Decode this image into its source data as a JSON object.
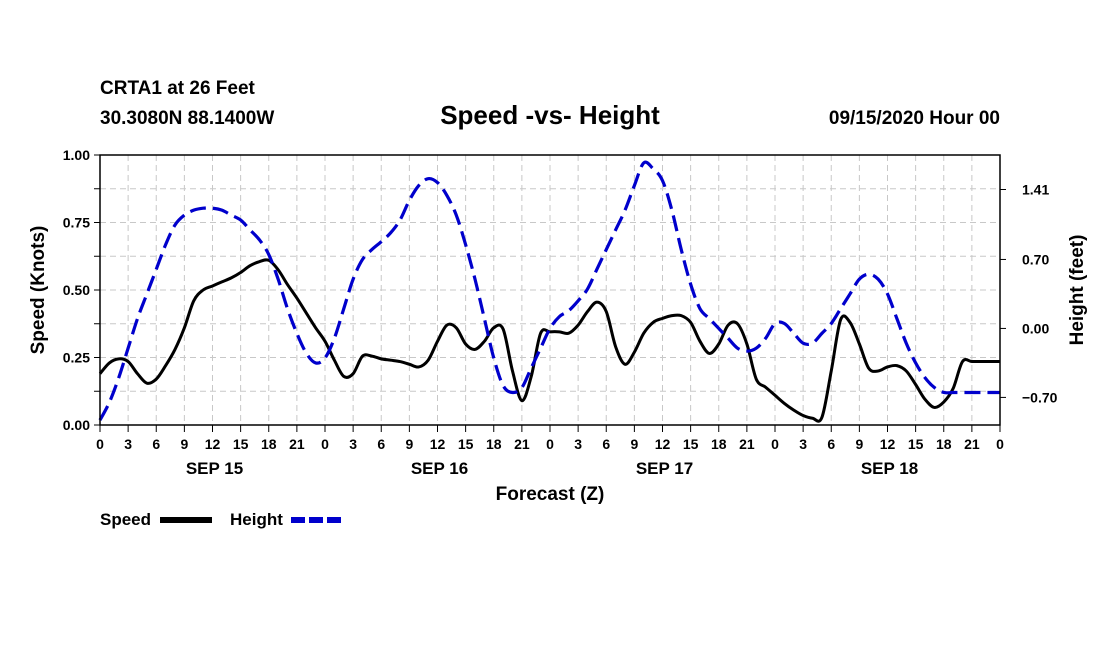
{
  "chart_data": {
    "type": "line",
    "station_label": "CRTA1 at 26 Feet",
    "coordinates": "30.3080N 88.1400W",
    "title": "Speed -vs- Height",
    "issued": "09/15/2020 Hour 00",
    "xlabel": "Forecast (Z)",
    "ylabel_left": "Speed (Knots)",
    "ylabel_right": "Height (feet)",
    "x_range_hours": [
      0,
      96
    ],
    "ylim_left": [
      0,
      1.0
    ],
    "ylim_right": [
      -0.98,
      1.76
    ],
    "grid": true,
    "x_tick_step_hours": 3,
    "x_tick_labels": [
      "0",
      "3",
      "6",
      "9",
      "12",
      "15",
      "18",
      "21",
      "0",
      "3",
      "6",
      "9",
      "12",
      "15",
      "18",
      "21",
      "0",
      "3",
      "6",
      "9",
      "12",
      "15",
      "18",
      "21",
      "0",
      "3",
      "6",
      "9",
      "12",
      "15",
      "18",
      "21",
      "0"
    ],
    "date_labels": [
      {
        "hour": 12,
        "label": "SEP 15"
      },
      {
        "hour": 36,
        "label": "SEP 16"
      },
      {
        "hour": 60,
        "label": "SEP 17"
      },
      {
        "hour": 84,
        "label": "SEP 18"
      }
    ],
    "left_ticks": [
      {
        "value": 0.0,
        "label": "0.00"
      },
      {
        "value": 0.25,
        "label": "0.25"
      },
      {
        "value": 0.5,
        "label": "0.50"
      },
      {
        "value": 0.75,
        "label": "0.75"
      },
      {
        "value": 1.0,
        "label": "1.00"
      }
    ],
    "right_ticks": [
      {
        "value": -0.7,
        "label": "−0.70"
      },
      {
        "value": 0.0,
        "label": "0.00"
      },
      {
        "value": 0.7,
        "label": "0.70"
      },
      {
        "value": 1.41,
        "label": "1.41"
      }
    ],
    "series": [
      {
        "name": "Speed",
        "axis": "left",
        "color": "#000000",
        "style": "solid",
        "x": [
          0,
          1,
          2,
          3,
          4,
          5,
          6,
          7,
          8,
          9,
          10,
          11,
          12,
          13,
          14,
          15,
          16,
          17,
          18,
          19,
          20,
          21,
          22,
          23,
          24,
          25,
          26,
          27,
          28,
          29,
          30,
          31,
          32,
          33,
          34,
          35,
          36,
          37,
          38,
          39,
          40,
          41,
          42,
          43,
          44,
          45,
          46,
          47,
          48,
          49,
          50,
          51,
          52,
          53,
          54,
          55,
          56,
          57,
          58,
          59,
          60,
          61,
          62,
          63,
          64,
          65,
          66,
          67,
          68,
          69,
          70,
          71,
          72,
          73,
          74,
          75,
          76,
          77,
          78,
          79,
          80,
          81,
          82,
          83,
          84,
          85,
          86,
          87,
          88,
          89,
          90,
          91,
          92,
          93,
          94,
          95,
          96
        ],
        "values": [
          0.19,
          0.23,
          0.245,
          0.235,
          0.19,
          0.155,
          0.17,
          0.22,
          0.28,
          0.36,
          0.46,
          0.5,
          0.515,
          0.53,
          0.545,
          0.565,
          0.59,
          0.605,
          0.61,
          0.575,
          0.52,
          0.47,
          0.415,
          0.36,
          0.31,
          0.24,
          0.18,
          0.19,
          0.255,
          0.255,
          0.245,
          0.24,
          0.235,
          0.225,
          0.215,
          0.24,
          0.31,
          0.37,
          0.36,
          0.3,
          0.28,
          0.31,
          0.36,
          0.355,
          0.2,
          0.09,
          0.18,
          0.34,
          0.345,
          0.345,
          0.34,
          0.37,
          0.42,
          0.455,
          0.42,
          0.29,
          0.225,
          0.27,
          0.34,
          0.38,
          0.395,
          0.405,
          0.405,
          0.38,
          0.31,
          0.265,
          0.3,
          0.37,
          0.375,
          0.3,
          0.17,
          0.14,
          0.11,
          0.08,
          0.055,
          0.035,
          0.025,
          0.028,
          0.2,
          0.39,
          0.38,
          0.3,
          0.21,
          0.2,
          0.215,
          0.22,
          0.2,
          0.15,
          0.095,
          0.065,
          0.085,
          0.135,
          0.235,
          0.235,
          0.235,
          0.235,
          0.235
        ]
      },
      {
        "name": "Height",
        "axis": "right",
        "color": "#0000cc",
        "style": "dashed",
        "x": [
          0,
          1,
          2,
          3,
          4,
          5,
          6,
          7,
          8,
          9,
          10,
          11,
          12,
          13,
          14,
          15,
          16,
          17,
          18,
          19,
          20,
          21,
          22,
          23,
          24,
          25,
          26,
          27,
          28,
          29,
          30,
          31,
          32,
          33,
          34,
          35,
          36,
          37,
          38,
          39,
          40,
          41,
          42,
          43,
          44,
          45,
          46,
          47,
          48,
          49,
          50,
          51,
          52,
          53,
          54,
          55,
          56,
          57,
          58,
          59,
          60,
          61,
          62,
          63,
          64,
          65,
          66,
          67,
          68,
          69,
          70,
          71,
          72,
          73,
          74,
          75,
          76,
          77,
          78,
          79,
          80,
          81,
          82,
          83,
          84,
          85,
          86,
          87,
          88,
          89,
          90,
          91,
          92,
          93,
          94,
          95,
          96
        ],
        "values": [
          -0.93,
          -0.75,
          -0.5,
          -0.2,
          0.1,
          0.35,
          0.6,
          0.85,
          1.05,
          1.15,
          1.2,
          1.22,
          1.22,
          1.2,
          1.15,
          1.1,
          1.0,
          0.9,
          0.75,
          0.5,
          0.2,
          -0.05,
          -0.25,
          -0.35,
          -0.3,
          -0.1,
          0.2,
          0.5,
          0.7,
          0.8,
          0.88,
          0.97,
          1.1,
          1.3,
          1.45,
          1.52,
          1.48,
          1.35,
          1.15,
          0.85,
          0.5,
          0.1,
          -0.3,
          -0.58,
          -0.65,
          -0.6,
          -0.4,
          -0.2,
          0.0,
          0.12,
          0.18,
          0.28,
          0.4,
          0.6,
          0.8,
          1.0,
          1.2,
          1.45,
          1.68,
          1.62,
          1.5,
          1.2,
          0.8,
          0.45,
          0.2,
          0.1,
          0.0,
          -0.1,
          -0.2,
          -0.23,
          -0.2,
          -0.1,
          0.05,
          0.05,
          -0.05,
          -0.15,
          -0.15,
          -0.05,
          0.05,
          0.2,
          0.35,
          0.5,
          0.55,
          0.5,
          0.35,
          0.1,
          -0.15,
          -0.35,
          -0.5,
          -0.6,
          -0.65,
          -0.65,
          -0.65,
          -0.65,
          -0.65,
          -0.65,
          -0.65
        ]
      }
    ],
    "legend": [
      {
        "label": "Speed",
        "color": "#000000",
        "style": "solid"
      },
      {
        "label": "Height",
        "color": "#0000cc",
        "style": "dashed"
      }
    ]
  }
}
